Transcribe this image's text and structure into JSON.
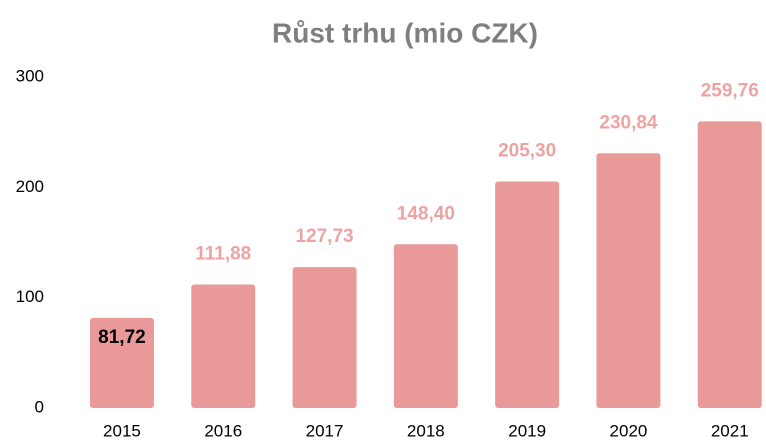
{
  "chart_data": {
    "type": "bar",
    "title": "Růst trhu (mio CZK)",
    "categories": [
      "2015",
      "2016",
      "2017",
      "2018",
      "2019",
      "2020",
      "2021"
    ],
    "values": [
      81.72,
      111.88,
      127.73,
      148.4,
      205.3,
      230.84,
      259.76
    ],
    "value_labels": [
      "81,72",
      "111,88",
      "127,73",
      "148,40",
      "205,30",
      "230,84",
      "259,76"
    ],
    "color": "#ea9999",
    "ylim": [
      0,
      300
    ],
    "yticks": [
      0,
      100,
      200,
      300
    ],
    "grid": false
  }
}
